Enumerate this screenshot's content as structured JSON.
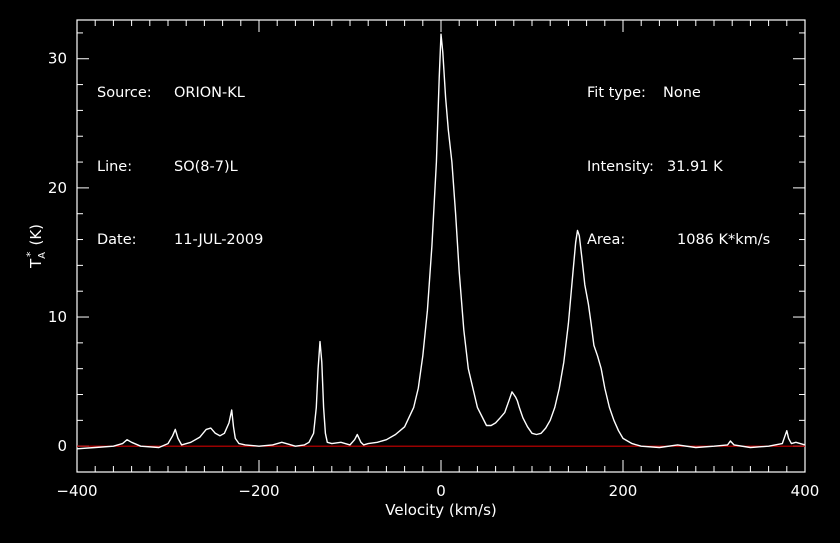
{
  "header": {
    "left": [
      {
        "label": "Source:",
        "value": "ORION-KL"
      },
      {
        "label": "Line:",
        "value": "SO(8-7)L"
      },
      {
        "label": "Date:",
        "value": "11-JUL-2009"
      }
    ],
    "right": [
      {
        "label": "Fit type:",
        "value": "None"
      },
      {
        "label": "Intensity:",
        "value": "31.91 K"
      },
      {
        "label": "Area:",
        "value": "1086 K*km/s"
      }
    ]
  },
  "chart_data": {
    "type": "line",
    "xlabel": "Velocity (km/s)",
    "ylabel_main": "T",
    "ylabel_sub": "A",
    "ylabel_sup": "*",
    "ylabel_unit": "(K)",
    "xlim": [
      -400,
      400
    ],
    "ylim": [
      -2,
      33
    ],
    "xticks": [
      -400,
      -200,
      0,
      200,
      400
    ],
    "yticks": [
      0,
      10,
      20,
      30
    ],
    "background": "#000000",
    "line_color": "#ffffff",
    "baseline_color": "#cc0000",
    "baseline_y": 0,
    "series": [
      {
        "x": [
          -400,
          -380,
          -360,
          -350,
          -345,
          -340,
          -330,
          -310,
          -300,
          -295,
          -292,
          -289,
          -285,
          -275,
          -265,
          -258,
          -253,
          -248,
          -243,
          -238,
          -233,
          -230,
          -228,
          -226,
          -222,
          -215,
          -200,
          -185,
          -175,
          -170,
          -160,
          -150,
          -145,
          -140,
          -137,
          -135,
          -133,
          -131,
          -129,
          -127,
          -125,
          -120,
          -110,
          -100,
          -95,
          -92,
          -90,
          -88,
          -85,
          -80,
          -70,
          -60,
          -50,
          -40,
          -30,
          -25,
          -20,
          -15,
          -10,
          -5,
          -2,
          0,
          2,
          5,
          8,
          12,
          16,
          20,
          25,
          30,
          40,
          50,
          55,
          60,
          65,
          70,
          75,
          78,
          80,
          82,
          84,
          86,
          88,
          90,
          95,
          100,
          105,
          110,
          115,
          120,
          125,
          130,
          135,
          140,
          145,
          148,
          150,
          152,
          155,
          158,
          162,
          165,
          168,
          172,
          176,
          180,
          185,
          190,
          195,
          200,
          205,
          210,
          220,
          240,
          260,
          280,
          300,
          315,
          318,
          322,
          340,
          360,
          375,
          378,
          380,
          382,
          385,
          390,
          400
        ],
        "y": [
          -0.2,
          -0.1,
          0.0,
          0.2,
          0.5,
          0.3,
          0.0,
          -0.1,
          0.2,
          0.8,
          1.3,
          0.6,
          0.1,
          0.3,
          0.7,
          1.3,
          1.4,
          1.0,
          0.8,
          1.0,
          1.8,
          2.8,
          1.5,
          0.6,
          0.2,
          0.1,
          0.0,
          0.1,
          0.3,
          0.2,
          0.0,
          0.1,
          0.3,
          1.0,
          3.0,
          6.0,
          8.1,
          6.5,
          3.0,
          1.0,
          0.3,
          0.2,
          0.3,
          0.1,
          0.5,
          0.9,
          0.6,
          0.3,
          0.1,
          0.2,
          0.3,
          0.5,
          0.9,
          1.5,
          3.0,
          4.5,
          7.0,
          10.5,
          15.5,
          22.0,
          28.5,
          31.9,
          30.5,
          27.0,
          24.5,
          22.0,
          18.0,
          13.5,
          9.0,
          6.0,
          3.0,
          1.6,
          1.6,
          1.8,
          2.2,
          2.6,
          3.6,
          4.2,
          4.0,
          3.8,
          3.5,
          3.0,
          2.6,
          2.2,
          1.5,
          1.0,
          0.9,
          1.0,
          1.4,
          2.0,
          3.0,
          4.5,
          6.5,
          9.5,
          13.5,
          15.8,
          16.7,
          16.3,
          14.5,
          12.5,
          11.0,
          9.5,
          7.8,
          7.0,
          6.0,
          4.5,
          3.0,
          2.0,
          1.2,
          0.6,
          0.4,
          0.2,
          0.0,
          -0.1,
          0.1,
          -0.1,
          0.0,
          0.1,
          0.4,
          0.1,
          -0.1,
          0.0,
          0.2,
          0.8,
          1.2,
          0.6,
          0.2,
          0.3,
          0.1
        ]
      }
    ]
  }
}
